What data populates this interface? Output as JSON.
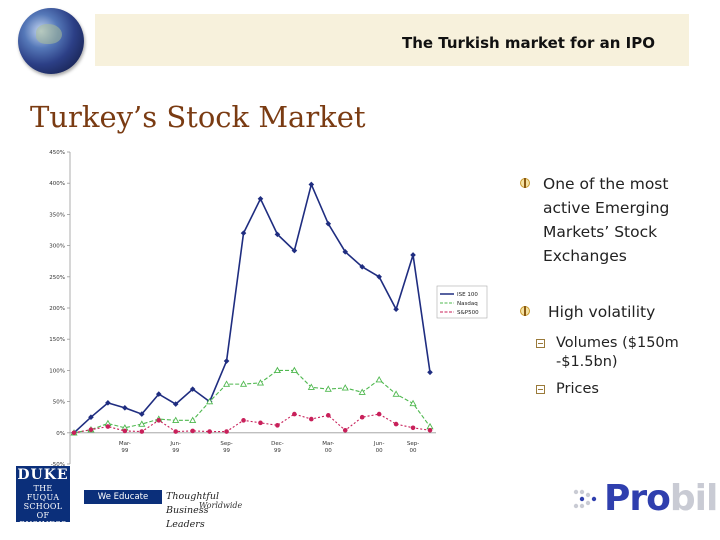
{
  "header": {
    "title": "The Turkish market for an IPO"
  },
  "slide": {
    "title": "Turkey’s Stock Market"
  },
  "bullets": [
    {
      "text": "One of the most active Emerging Markets’ Stock Exchanges"
    },
    {
      "text": "High volatility",
      "sub": [
        "Volumes ($150m -$1.5bn)",
        "Prices"
      ]
    }
  ],
  "chart_data": {
    "type": "line",
    "title": "",
    "xlabel": "",
    "ylabel": "",
    "ylim": [
      -50,
      450
    ],
    "yticks": [
      "450%",
      "400%",
      "350%",
      "300%",
      "250%",
      "200%",
      "150%",
      "100%",
      "50%",
      "0%",
      "-50%"
    ],
    "x_tick_labels": [
      "Mar-99",
      "Jun-99",
      "Sep-99",
      "Dec-99",
      "Mar-00",
      "Jun-00",
      "Sep-00"
    ],
    "legend_position": "right",
    "grid": false,
    "series": [
      {
        "name": "ISE 100",
        "color": "#1f2d80",
        "marker": "diamond",
        "values": [
          0,
          25,
          48,
          40,
          30,
          62,
          46,
          70,
          50,
          115,
          320,
          375,
          318,
          292,
          398,
          335,
          290,
          266,
          250,
          198,
          285,
          97
        ]
      },
      {
        "name": "Nasdaq",
        "color": "#4fb84f",
        "marker": "triangle",
        "values": [
          0,
          5,
          15,
          8,
          14,
          22,
          20,
          20,
          50,
          78,
          78,
          80,
          100,
          100,
          73,
          70,
          72,
          65,
          85,
          62,
          47,
          10
        ]
      },
      {
        "name": "S&P500",
        "color": "#c8205a",
        "marker": "circle",
        "values": [
          0,
          5,
          10,
          3,
          2,
          20,
          2,
          3,
          2,
          2,
          20,
          16,
          12,
          30,
          22,
          28,
          4,
          25,
          30,
          14,
          8,
          4
        ]
      }
    ]
  },
  "footer": {
    "duke_top": "DUKE",
    "duke_lines": [
      "THE FUQUA",
      "SCHOOL",
      "OF BUSINESS"
    ],
    "educate_a": "We Educate",
    "educate_b": "Thoughtful Business Leaders",
    "educate_c": "Worldwide",
    "probil_pro": "Pro",
    "probil_bil": "bil"
  },
  "colors": {
    "header_band": "#f7f1dc",
    "title": "#7a3b12",
    "duke_blue": "#0b2f7a",
    "probil_blue": "#2f3fae",
    "probil_gray": "#c9cbd4"
  }
}
